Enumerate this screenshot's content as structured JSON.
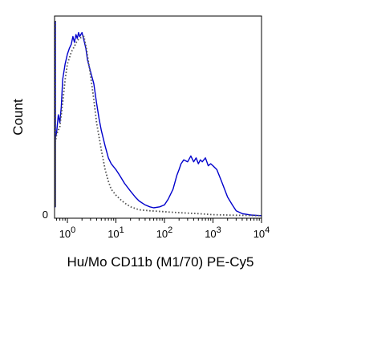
{
  "chart_data": {
    "type": "line",
    "title": "",
    "xlabel": "Hu/Mo CD11b (M1/70) PE-Cy5",
    "ylabel": "Count",
    "x_scale": "log",
    "xlim": [
      0.5,
      10000
    ],
    "ylim": [
      0,
      100
    ],
    "x_ticks": [
      {
        "value": 1,
        "base": "10",
        "exp": "0"
      },
      {
        "value": 10,
        "base": "10",
        "exp": "1"
      },
      {
        "value": 100,
        "base": "10",
        "exp": "2"
      },
      {
        "value": 1000,
        "base": "10",
        "exp": "3"
      },
      {
        "value": 10000,
        "base": "10",
        "exp": "4"
      }
    ],
    "y_ticks": [
      {
        "value": 0,
        "label": "0"
      }
    ],
    "grid": false,
    "legend": "none",
    "series": [
      {
        "style": "solid",
        "color": "#0000cc",
        "points": [
          [
            0.5,
            100
          ],
          [
            0.52,
            5
          ],
          [
            0.55,
            40
          ],
          [
            0.6,
            43
          ],
          [
            0.65,
            52
          ],
          [
            0.7,
            48
          ],
          [
            0.75,
            56
          ],
          [
            0.8,
            70
          ],
          [
            0.9,
            78
          ],
          [
            1.0,
            83
          ],
          [
            1.1,
            86
          ],
          [
            1.2,
            88
          ],
          [
            1.3,
            92
          ],
          [
            1.4,
            89
          ],
          [
            1.5,
            93
          ],
          [
            1.6,
            91
          ],
          [
            1.7,
            94
          ],
          [
            1.8,
            92
          ],
          [
            2.0,
            94
          ],
          [
            2.2,
            90
          ],
          [
            2.4,
            86
          ],
          [
            2.6,
            80
          ],
          [
            3.0,
            74
          ],
          [
            3.5,
            68
          ],
          [
            4.0,
            58
          ],
          [
            4.5,
            50
          ],
          [
            5.0,
            44
          ],
          [
            6.0,
            36
          ],
          [
            7.0,
            30
          ],
          [
            8.0,
            27
          ],
          [
            10,
            24
          ],
          [
            12,
            21
          ],
          [
            15,
            17
          ],
          [
            20,
            13
          ],
          [
            25,
            10
          ],
          [
            30,
            8
          ],
          [
            40,
            6
          ],
          [
            50,
            5
          ],
          [
            60,
            4.5
          ],
          [
            80,
            5
          ],
          [
            100,
            6
          ],
          [
            120,
            9
          ],
          [
            150,
            14
          ],
          [
            180,
            21
          ],
          [
            200,
            24
          ],
          [
            220,
            27
          ],
          [
            250,
            29
          ],
          [
            300,
            28
          ],
          [
            350,
            31
          ],
          [
            400,
            28
          ],
          [
            450,
            30
          ],
          [
            500,
            27
          ],
          [
            550,
            29
          ],
          [
            600,
            28
          ],
          [
            700,
            30
          ],
          [
            800,
            26
          ],
          [
            900,
            27
          ],
          [
            1000,
            26
          ],
          [
            1200,
            24
          ],
          [
            1500,
            18
          ],
          [
            2000,
            10
          ],
          [
            2500,
            6
          ],
          [
            3000,
            3
          ],
          [
            4000,
            1.5
          ],
          [
            6000,
            0.8
          ],
          [
            10000,
            0.5
          ]
        ]
      },
      {
        "style": "dotted",
        "color": "#555555",
        "points": [
          [
            0.5,
            100
          ],
          [
            0.52,
            5
          ],
          [
            0.55,
            38
          ],
          [
            0.6,
            42
          ],
          [
            0.7,
            46
          ],
          [
            0.8,
            58
          ],
          [
            0.9,
            70
          ],
          [
            1.0,
            78
          ],
          [
            1.2,
            84
          ],
          [
            1.4,
            87
          ],
          [
            1.6,
            90
          ],
          [
            1.8,
            91
          ],
          [
            2.0,
            92
          ],
          [
            2.2,
            92
          ],
          [
            2.5,
            85
          ],
          [
            3.0,
            72
          ],
          [
            3.5,
            60
          ],
          [
            4.0,
            48
          ],
          [
            5.0,
            34
          ],
          [
            6.0,
            24
          ],
          [
            7.0,
            18
          ],
          [
            8.0,
            14
          ],
          [
            10,
            11
          ],
          [
            12,
            9
          ],
          [
            15,
            7
          ],
          [
            20,
            5
          ],
          [
            30,
            3.5
          ],
          [
            50,
            3
          ],
          [
            100,
            2.5
          ],
          [
            200,
            2
          ],
          [
            500,
            1.5
          ],
          [
            1000,
            1
          ],
          [
            3000,
            0.7
          ],
          [
            10000,
            0.5
          ]
        ]
      }
    ]
  }
}
